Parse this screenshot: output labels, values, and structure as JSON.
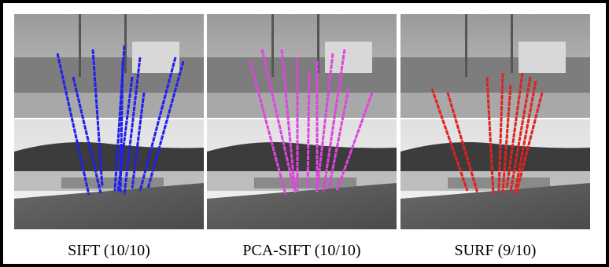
{
  "panels": [
    {
      "caption": "SIFT (10/10)"
    },
    {
      "caption": "PCA-SIFT (10/10)"
    },
    {
      "caption": "SURF (9/10)"
    }
  ]
}
